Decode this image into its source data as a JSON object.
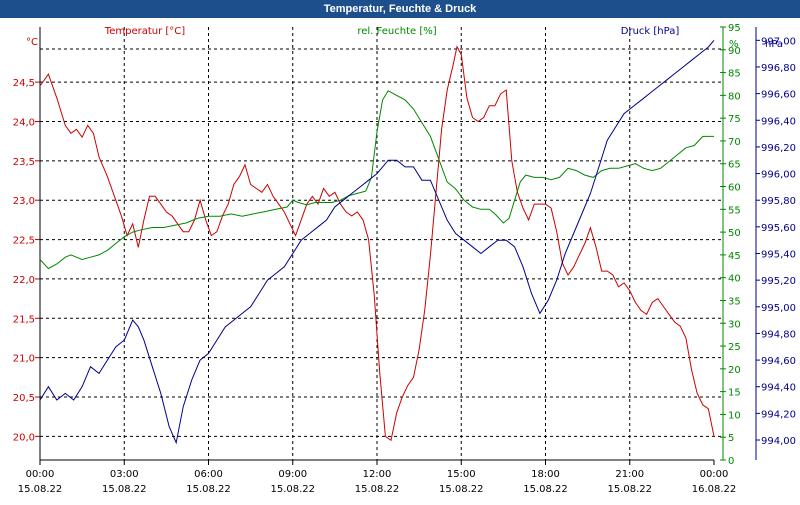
{
  "window": {
    "title": "Temperatur, Feuchte & Druck"
  },
  "colors": {
    "temperature": "#cc0000",
    "humidity": "#008800",
    "pressure": "#00008b",
    "title_bar": "#1d4f8c",
    "grid": "#000000"
  },
  "chart_data": {
    "type": "line",
    "title": "Temperatur, Feuchte & Druck",
    "grid": true,
    "x": {
      "ticks": [
        {
          "time": "00:00",
          "date": "15.08.22"
        },
        {
          "time": "03:00",
          "date": "15.08.22"
        },
        {
          "time": "06:00",
          "date": "15.08.22"
        },
        {
          "time": "09:00",
          "date": "15.08.22"
        },
        {
          "time": "12:00",
          "date": "15.08.22"
        },
        {
          "time": "15:00",
          "date": "15.08.22"
        },
        {
          "time": "18:00",
          "date": "15.08.22"
        },
        {
          "time": "21:00",
          "date": "15.08.22"
        },
        {
          "time": "00:00",
          "date": "16.08.22"
        }
      ],
      "range_hours": [
        0,
        24
      ]
    },
    "axes": {
      "left": {
        "label": "Temperatur [°C]",
        "unit": "°C",
        "range": [
          19.7,
          25.2
        ],
        "ticks": [
          "20,0",
          "20,5",
          "21,0",
          "21,5",
          "22,0",
          "22,5",
          "23,0",
          "23,5",
          "24,0",
          "24,5"
        ]
      },
      "middle": {
        "label": "rel. Feuchte [%]",
        "unit": "%",
        "range": [
          0,
          95
        ],
        "ticks": [
          "0",
          "5",
          "10",
          "15",
          "20",
          "25",
          "30",
          "35",
          "40",
          "45",
          "50",
          "55",
          "60",
          "65",
          "70",
          "75",
          "80",
          "85",
          "90",
          "95"
        ]
      },
      "right": {
        "label": "Druck [hPa]",
        "unit": "hPa",
        "range": [
          993.85,
          997.1
        ],
        "ticks": [
          "994,00",
          "994,20",
          "994,40",
          "994,60",
          "994,80",
          "995,00",
          "995,20",
          "995,40",
          "995,60",
          "995,80",
          "996,00",
          "996,20",
          "996,40",
          "996,60",
          "996,80",
          "997,00"
        ]
      }
    },
    "series": [
      {
        "name": "Temperatur [°C]",
        "axis": "left",
        "points": [
          [
            0,
            24.45
          ],
          [
            0.3,
            24.6
          ],
          [
            0.6,
            24.3
          ],
          [
            0.9,
            23.95
          ],
          [
            1.1,
            23.85
          ],
          [
            1.3,
            23.9
          ],
          [
            1.5,
            23.8
          ],
          [
            1.7,
            23.95
          ],
          [
            1.9,
            23.85
          ],
          [
            2.1,
            23.55
          ],
          [
            2.4,
            23.3
          ],
          [
            2.7,
            23.0
          ],
          [
            2.9,
            22.8
          ],
          [
            3.1,
            22.55
          ],
          [
            3.3,
            22.7
          ],
          [
            3.5,
            22.4
          ],
          [
            3.7,
            22.75
          ],
          [
            3.9,
            23.05
          ],
          [
            4.1,
            23.05
          ],
          [
            4.3,
            22.95
          ],
          [
            4.5,
            22.85
          ],
          [
            4.7,
            22.8
          ],
          [
            4.9,
            22.7
          ],
          [
            5.1,
            22.6
          ],
          [
            5.3,
            22.6
          ],
          [
            5.5,
            22.75
          ],
          [
            5.7,
            23.0
          ],
          [
            5.9,
            22.75
          ],
          [
            6.1,
            22.55
          ],
          [
            6.3,
            22.6
          ],
          [
            6.5,
            22.8
          ],
          [
            6.7,
            22.95
          ],
          [
            6.9,
            23.2
          ],
          [
            7.1,
            23.3
          ],
          [
            7.3,
            23.45
          ],
          [
            7.5,
            23.2
          ],
          [
            7.7,
            23.15
          ],
          [
            7.9,
            23.1
          ],
          [
            8.1,
            23.2
          ],
          [
            8.3,
            23.05
          ],
          [
            8.5,
            22.95
          ],
          [
            8.7,
            22.85
          ],
          [
            8.9,
            22.7
          ],
          [
            9.1,
            22.55
          ],
          [
            9.3,
            22.75
          ],
          [
            9.5,
            22.95
          ],
          [
            9.7,
            23.05
          ],
          [
            9.9,
            22.95
          ],
          [
            10.1,
            23.15
          ],
          [
            10.3,
            23.05
          ],
          [
            10.5,
            23.1
          ],
          [
            10.7,
            22.95
          ],
          [
            10.9,
            22.85
          ],
          [
            11.1,
            22.8
          ],
          [
            11.3,
            22.85
          ],
          [
            11.5,
            22.75
          ],
          [
            11.7,
            22.5
          ],
          [
            11.9,
            21.8
          ],
          [
            12.1,
            20.8
          ],
          [
            12.3,
            20.0
          ],
          [
            12.5,
            19.95
          ],
          [
            12.7,
            20.3
          ],
          [
            12.9,
            20.5
          ],
          [
            13.1,
            20.65
          ],
          [
            13.3,
            20.75
          ],
          [
            13.5,
            21.1
          ],
          [
            13.7,
            21.6
          ],
          [
            13.9,
            22.3
          ],
          [
            14.1,
            23.1
          ],
          [
            14.3,
            23.9
          ],
          [
            14.5,
            24.4
          ],
          [
            14.7,
            24.7
          ],
          [
            14.85,
            24.95
          ],
          [
            15.0,
            24.85
          ],
          [
            15.2,
            24.3
          ],
          [
            15.4,
            24.05
          ],
          [
            15.6,
            24.0
          ],
          [
            15.8,
            24.05
          ],
          [
            16.0,
            24.2
          ],
          [
            16.2,
            24.2
          ],
          [
            16.4,
            24.35
          ],
          [
            16.6,
            24.4
          ],
          [
            16.8,
            23.5
          ],
          [
            17.0,
            23.1
          ],
          [
            17.2,
            22.9
          ],
          [
            17.4,
            22.75
          ],
          [
            17.6,
            22.95
          ],
          [
            17.8,
            22.95
          ],
          [
            18.0,
            22.95
          ],
          [
            18.2,
            22.9
          ],
          [
            18.4,
            22.6
          ],
          [
            18.6,
            22.2
          ],
          [
            18.8,
            22.05
          ],
          [
            19.0,
            22.15
          ],
          [
            19.2,
            22.3
          ],
          [
            19.4,
            22.45
          ],
          [
            19.6,
            22.65
          ],
          [
            19.8,
            22.4
          ],
          [
            20.0,
            22.1
          ],
          [
            20.2,
            22.1
          ],
          [
            20.4,
            22.05
          ],
          [
            20.6,
            21.9
          ],
          [
            20.8,
            21.95
          ],
          [
            21.0,
            21.85
          ],
          [
            21.2,
            21.7
          ],
          [
            21.4,
            21.6
          ],
          [
            21.6,
            21.55
          ],
          [
            21.8,
            21.7
          ],
          [
            22.0,
            21.75
          ],
          [
            22.2,
            21.65
          ],
          [
            22.4,
            21.55
          ],
          [
            22.6,
            21.45
          ],
          [
            22.8,
            21.4
          ],
          [
            23.0,
            21.25
          ],
          [
            23.2,
            20.85
          ],
          [
            23.4,
            20.55
          ],
          [
            23.6,
            20.4
          ],
          [
            23.8,
            20.35
          ],
          [
            24.0,
            20.0
          ]
        ]
      },
      {
        "name": "rel. Feuchte [%]",
        "axis": "middle",
        "points": [
          [
            0,
            44
          ],
          [
            0.3,
            42
          ],
          [
            0.6,
            43
          ],
          [
            0.9,
            44.5
          ],
          [
            1.1,
            45
          ],
          [
            1.3,
            44.5
          ],
          [
            1.5,
            44
          ],
          [
            1.8,
            44.5
          ],
          [
            2.1,
            45
          ],
          [
            2.4,
            46
          ],
          [
            2.7,
            47.5
          ],
          [
            3.0,
            49
          ],
          [
            3.3,
            50
          ],
          [
            3.6,
            50.5
          ],
          [
            4.0,
            51
          ],
          [
            4.4,
            51
          ],
          [
            4.8,
            51.5
          ],
          [
            5.2,
            52
          ],
          [
            5.6,
            53
          ],
          [
            6.0,
            53.5
          ],
          [
            6.4,
            53.5
          ],
          [
            6.8,
            54
          ],
          [
            7.2,
            53.5
          ],
          [
            7.6,
            54
          ],
          [
            8.0,
            54.5
          ],
          [
            8.4,
            55
          ],
          [
            8.8,
            55.5
          ],
          [
            9.0,
            57
          ],
          [
            9.2,
            56.5
          ],
          [
            9.5,
            56
          ],
          [
            9.8,
            56.5
          ],
          [
            10.1,
            56.5
          ],
          [
            10.4,
            56.5
          ],
          [
            10.7,
            57
          ],
          [
            11.0,
            58
          ],
          [
            11.3,
            58.5
          ],
          [
            11.6,
            59
          ],
          [
            11.8,
            62
          ],
          [
            12.0,
            72
          ],
          [
            12.2,
            79
          ],
          [
            12.4,
            81
          ],
          [
            12.7,
            80
          ],
          [
            13.0,
            79
          ],
          [
            13.3,
            77
          ],
          [
            13.6,
            74
          ],
          [
            13.9,
            71
          ],
          [
            14.2,
            66
          ],
          [
            14.5,
            61
          ],
          [
            14.8,
            59.5
          ],
          [
            15.1,
            57
          ],
          [
            15.4,
            55.5
          ],
          [
            15.7,
            55
          ],
          [
            16.0,
            55
          ],
          [
            16.2,
            54
          ],
          [
            16.5,
            52
          ],
          [
            16.7,
            53
          ],
          [
            16.9,
            57
          ],
          [
            17.1,
            61
          ],
          [
            17.3,
            62.5
          ],
          [
            17.6,
            62
          ],
          [
            17.9,
            62
          ],
          [
            18.2,
            61.5
          ],
          [
            18.5,
            62
          ],
          [
            18.8,
            64
          ],
          [
            19.1,
            63.5
          ],
          [
            19.4,
            62.5
          ],
          [
            19.7,
            62
          ],
          [
            20.0,
            63.5
          ],
          [
            20.3,
            64
          ],
          [
            20.6,
            64
          ],
          [
            20.9,
            64.5
          ],
          [
            21.2,
            65
          ],
          [
            21.5,
            64
          ],
          [
            21.8,
            63.5
          ],
          [
            22.1,
            64
          ],
          [
            22.4,
            65.5
          ],
          [
            22.7,
            67
          ],
          [
            23.0,
            68.5
          ],
          [
            23.3,
            69
          ],
          [
            23.6,
            71
          ],
          [
            24.0,
            71
          ]
        ]
      },
      {
        "name": "Druck [hPa]",
        "axis": "right",
        "points": [
          [
            0,
            994.3
          ],
          [
            0.3,
            994.4
          ],
          [
            0.6,
            994.3
          ],
          [
            0.9,
            994.35
          ],
          [
            1.2,
            994.3
          ],
          [
            1.5,
            994.4
          ],
          [
            1.8,
            994.55
          ],
          [
            2.1,
            994.5
          ],
          [
            2.4,
            994.6
          ],
          [
            2.7,
            994.7
          ],
          [
            3.0,
            994.75
          ],
          [
            3.3,
            994.9
          ],
          [
            3.5,
            994.85
          ],
          [
            3.7,
            994.75
          ],
          [
            4.0,
            994.55
          ],
          [
            4.3,
            994.35
          ],
          [
            4.6,
            994.1
          ],
          [
            4.85,
            993.98
          ],
          [
            5.1,
            994.25
          ],
          [
            5.4,
            994.45
          ],
          [
            5.7,
            994.6
          ],
          [
            6.0,
            994.65
          ],
          [
            6.3,
            994.75
          ],
          [
            6.6,
            994.85
          ],
          [
            6.9,
            994.9
          ],
          [
            7.2,
            994.95
          ],
          [
            7.5,
            995.0
          ],
          [
            7.8,
            995.1
          ],
          [
            8.1,
            995.2
          ],
          [
            8.4,
            995.25
          ],
          [
            8.7,
            995.3
          ],
          [
            9.0,
            995.4
          ],
          [
            9.3,
            995.5
          ],
          [
            9.6,
            995.55
          ],
          [
            9.9,
            995.6
          ],
          [
            10.2,
            995.65
          ],
          [
            10.5,
            995.75
          ],
          [
            10.8,
            995.8
          ],
          [
            11.1,
            995.85
          ],
          [
            11.4,
            995.9
          ],
          [
            11.7,
            995.95
          ],
          [
            12.0,
            996.0
          ],
          [
            12.2,
            996.05
          ],
          [
            12.4,
            996.1
          ],
          [
            12.7,
            996.1
          ],
          [
            13.0,
            996.05
          ],
          [
            13.3,
            996.05
          ],
          [
            13.6,
            995.95
          ],
          [
            13.9,
            995.95
          ],
          [
            14.2,
            995.8
          ],
          [
            14.5,
            995.65
          ],
          [
            14.8,
            995.55
          ],
          [
            15.1,
            995.5
          ],
          [
            15.4,
            995.45
          ],
          [
            15.7,
            995.4
          ],
          [
            16.0,
            995.45
          ],
          [
            16.3,
            995.5
          ],
          [
            16.6,
            995.5
          ],
          [
            16.9,
            995.45
          ],
          [
            17.2,
            995.3
          ],
          [
            17.5,
            995.1
          ],
          [
            17.8,
            994.95
          ],
          [
            18.1,
            995.05
          ],
          [
            18.4,
            995.2
          ],
          [
            18.7,
            995.4
          ],
          [
            19.0,
            995.55
          ],
          [
            19.3,
            995.7
          ],
          [
            19.6,
            995.85
          ],
          [
            19.9,
            996.05
          ],
          [
            20.2,
            996.25
          ],
          [
            20.5,
            996.35
          ],
          [
            20.8,
            996.45
          ],
          [
            21.1,
            996.5
          ],
          [
            21.4,
            996.55
          ],
          [
            21.7,
            996.6
          ],
          [
            22.0,
            996.65
          ],
          [
            22.3,
            996.7
          ],
          [
            22.6,
            996.75
          ],
          [
            22.9,
            996.8
          ],
          [
            23.2,
            996.85
          ],
          [
            23.5,
            996.9
          ],
          [
            23.8,
            996.95
          ],
          [
            24.0,
            997.0
          ]
        ]
      }
    ]
  }
}
